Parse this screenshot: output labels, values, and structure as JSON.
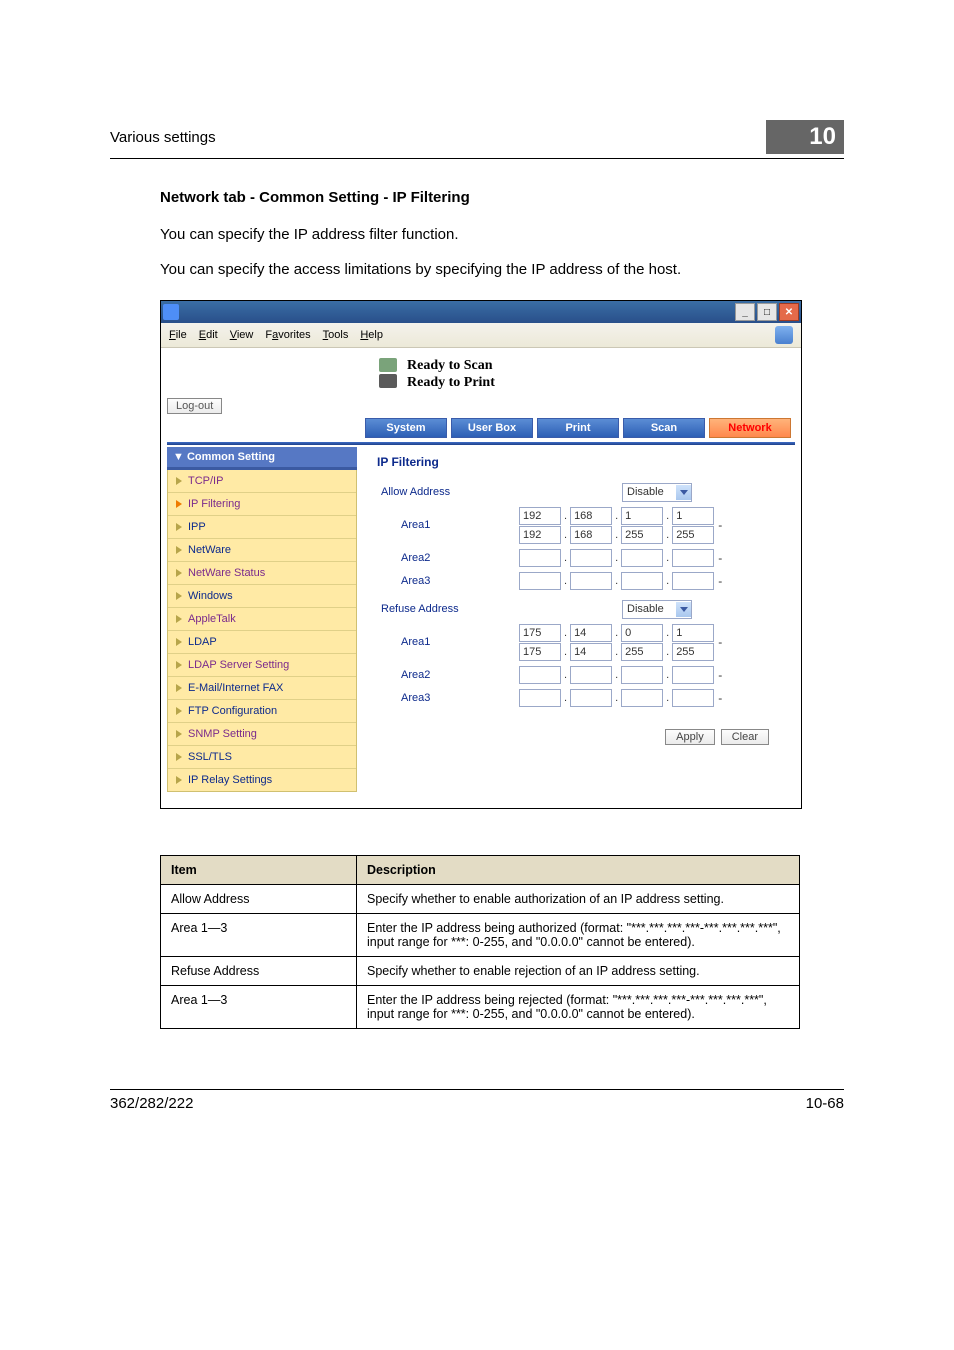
{
  "header": {
    "running_head": "Various settings",
    "chapter_number": "10"
  },
  "section": {
    "title": "Network tab - Common Setting - IP Filtering",
    "para1": "You can specify the IP address filter function.",
    "para2": "You can specify the access limitations by specifying the IP address of the host."
  },
  "screenshot": {
    "menubar": [
      "File",
      "Edit",
      "View",
      "Favorites",
      "Tools",
      "Help"
    ],
    "status": {
      "line1": "Ready to Scan",
      "line2": "Ready to Print"
    },
    "logout": "Log-out",
    "tabs": [
      "System",
      "User Box",
      "Print",
      "Scan",
      "Network"
    ],
    "active_tab": 4,
    "sidebar": {
      "head": "▼ Common Setting",
      "items": [
        {
          "label": "TCP/IP",
          "cls": "purple"
        },
        {
          "label": "IP Filtering",
          "cls": "purple",
          "run": true
        },
        {
          "label": "IPP",
          "cls": "navy"
        },
        {
          "label": "NetWare",
          "cls": "navy"
        },
        {
          "label": "NetWare Status",
          "cls": "purple"
        },
        {
          "label": "Windows",
          "cls": "navy"
        },
        {
          "label": "AppleTalk",
          "cls": "purple"
        },
        {
          "label": "LDAP",
          "cls": "navy"
        },
        {
          "label": "LDAP Server Setting",
          "cls": "purple"
        },
        {
          "label": "E-Mail/Internet FAX",
          "cls": "navy"
        },
        {
          "label": "FTP Configuration",
          "cls": "navy"
        },
        {
          "label": "SNMP Setting",
          "cls": "purple"
        },
        {
          "label": "SSL/TLS",
          "cls": "navy"
        },
        {
          "label": "IP Relay Settings",
          "cls": "navy"
        }
      ]
    },
    "panel": {
      "title": "IP Filtering",
      "allow": {
        "label": "Allow Address",
        "select": "Disable",
        "areas": [
          {
            "label": "Area1",
            "from": [
              "192",
              "168",
              "1",
              "1"
            ],
            "to": [
              "192",
              "168",
              "255",
              "255"
            ]
          },
          {
            "label": "Area2",
            "from": [
              "",
              "",
              "",
              ""
            ],
            "to": [
              "",
              "",
              "",
              ""
            ]
          },
          {
            "label": "Area3",
            "from": [
              "",
              "",
              "",
              ""
            ],
            "to": [
              "",
              "",
              "",
              ""
            ]
          }
        ]
      },
      "refuse": {
        "label": "Refuse Address",
        "select": "Disable",
        "areas": [
          {
            "label": "Area1",
            "from": [
              "175",
              "14",
              "0",
              "1"
            ],
            "to": [
              "175",
              "14",
              "255",
              "255"
            ]
          },
          {
            "label": "Area2",
            "from": [
              "",
              "",
              "",
              ""
            ],
            "to": [
              "",
              "",
              "",
              ""
            ]
          },
          {
            "label": "Area3",
            "from": [
              "",
              "",
              "",
              ""
            ],
            "to": [
              "",
              "",
              "",
              ""
            ]
          }
        ]
      },
      "buttons": {
        "apply": "Apply",
        "clear": "Clear"
      }
    }
  },
  "table": {
    "headers": [
      "Item",
      "Description"
    ],
    "rows": [
      [
        "Allow Address",
        "Specify whether to enable authorization of an IP address setting."
      ],
      [
        "Area 1—3",
        "Enter the IP address being authorized (format: \"***.***.***.***-***.***.***.***\", input range for ***: 0-255, and \"0.0.0.0\" cannot be entered)."
      ],
      [
        "Refuse Address",
        "Specify whether to enable rejection of an IP address setting."
      ],
      [
        "Area 1—3",
        "Enter the IP address being rejected (format: \"***.***.***.***-***.***.***.***\", input range for ***: 0-255, and \"0.0.0.0\" cannot be entered)."
      ]
    ]
  },
  "footer": {
    "left": "362/282/222",
    "right": "10-68"
  }
}
